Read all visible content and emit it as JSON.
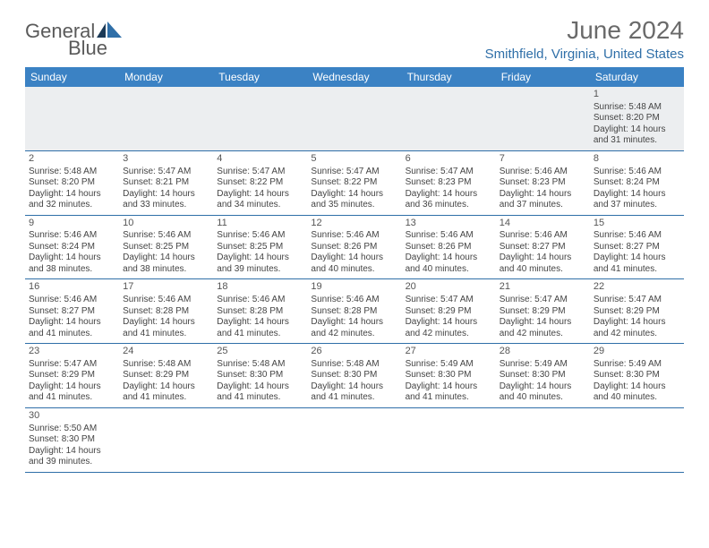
{
  "logo": {
    "word1": "General",
    "word2": "Blue"
  },
  "title": "June 2024",
  "location": "Smithfield, Virginia, United States",
  "colors": {
    "header_bg": "#3b82c4",
    "accent": "#2f6fa8",
    "text": "#444444",
    "title_text": "#6a6a6a",
    "firstrow_bg": "#eceef0"
  },
  "weekdays": [
    "Sunday",
    "Monday",
    "Tuesday",
    "Wednesday",
    "Thursday",
    "Friday",
    "Saturday"
  ],
  "weeks": [
    [
      null,
      null,
      null,
      null,
      null,
      null,
      {
        "n": "1",
        "sr": "5:48 AM",
        "ss": "8:20 PM",
        "dl1": "14 hours",
        "dl2": "and 31 minutes."
      }
    ],
    [
      {
        "n": "2",
        "sr": "5:48 AM",
        "ss": "8:20 PM",
        "dl1": "14 hours",
        "dl2": "and 32 minutes."
      },
      {
        "n": "3",
        "sr": "5:47 AM",
        "ss": "8:21 PM",
        "dl1": "14 hours",
        "dl2": "and 33 minutes."
      },
      {
        "n": "4",
        "sr": "5:47 AM",
        "ss": "8:22 PM",
        "dl1": "14 hours",
        "dl2": "and 34 minutes."
      },
      {
        "n": "5",
        "sr": "5:47 AM",
        "ss": "8:22 PM",
        "dl1": "14 hours",
        "dl2": "and 35 minutes."
      },
      {
        "n": "6",
        "sr": "5:47 AM",
        "ss": "8:23 PM",
        "dl1": "14 hours",
        "dl2": "and 36 minutes."
      },
      {
        "n": "7",
        "sr": "5:46 AM",
        "ss": "8:23 PM",
        "dl1": "14 hours",
        "dl2": "and 37 minutes."
      },
      {
        "n": "8",
        "sr": "5:46 AM",
        "ss": "8:24 PM",
        "dl1": "14 hours",
        "dl2": "and 37 minutes."
      }
    ],
    [
      {
        "n": "9",
        "sr": "5:46 AM",
        "ss": "8:24 PM",
        "dl1": "14 hours",
        "dl2": "and 38 minutes."
      },
      {
        "n": "10",
        "sr": "5:46 AM",
        "ss": "8:25 PM",
        "dl1": "14 hours",
        "dl2": "and 38 minutes."
      },
      {
        "n": "11",
        "sr": "5:46 AM",
        "ss": "8:25 PM",
        "dl1": "14 hours",
        "dl2": "and 39 minutes."
      },
      {
        "n": "12",
        "sr": "5:46 AM",
        "ss": "8:26 PM",
        "dl1": "14 hours",
        "dl2": "and 40 minutes."
      },
      {
        "n": "13",
        "sr": "5:46 AM",
        "ss": "8:26 PM",
        "dl1": "14 hours",
        "dl2": "and 40 minutes."
      },
      {
        "n": "14",
        "sr": "5:46 AM",
        "ss": "8:27 PM",
        "dl1": "14 hours",
        "dl2": "and 40 minutes."
      },
      {
        "n": "15",
        "sr": "5:46 AM",
        "ss": "8:27 PM",
        "dl1": "14 hours",
        "dl2": "and 41 minutes."
      }
    ],
    [
      {
        "n": "16",
        "sr": "5:46 AM",
        "ss": "8:27 PM",
        "dl1": "14 hours",
        "dl2": "and 41 minutes."
      },
      {
        "n": "17",
        "sr": "5:46 AM",
        "ss": "8:28 PM",
        "dl1": "14 hours",
        "dl2": "and 41 minutes."
      },
      {
        "n": "18",
        "sr": "5:46 AM",
        "ss": "8:28 PM",
        "dl1": "14 hours",
        "dl2": "and 41 minutes."
      },
      {
        "n": "19",
        "sr": "5:46 AM",
        "ss": "8:28 PM",
        "dl1": "14 hours",
        "dl2": "and 42 minutes."
      },
      {
        "n": "20",
        "sr": "5:47 AM",
        "ss": "8:29 PM",
        "dl1": "14 hours",
        "dl2": "and 42 minutes."
      },
      {
        "n": "21",
        "sr": "5:47 AM",
        "ss": "8:29 PM",
        "dl1": "14 hours",
        "dl2": "and 42 minutes."
      },
      {
        "n": "22",
        "sr": "5:47 AM",
        "ss": "8:29 PM",
        "dl1": "14 hours",
        "dl2": "and 42 minutes."
      }
    ],
    [
      {
        "n": "23",
        "sr": "5:47 AM",
        "ss": "8:29 PM",
        "dl1": "14 hours",
        "dl2": "and 41 minutes."
      },
      {
        "n": "24",
        "sr": "5:48 AM",
        "ss": "8:29 PM",
        "dl1": "14 hours",
        "dl2": "and 41 minutes."
      },
      {
        "n": "25",
        "sr": "5:48 AM",
        "ss": "8:30 PM",
        "dl1": "14 hours",
        "dl2": "and 41 minutes."
      },
      {
        "n": "26",
        "sr": "5:48 AM",
        "ss": "8:30 PM",
        "dl1": "14 hours",
        "dl2": "and 41 minutes."
      },
      {
        "n": "27",
        "sr": "5:49 AM",
        "ss": "8:30 PM",
        "dl1": "14 hours",
        "dl2": "and 41 minutes."
      },
      {
        "n": "28",
        "sr": "5:49 AM",
        "ss": "8:30 PM",
        "dl1": "14 hours",
        "dl2": "and 40 minutes."
      },
      {
        "n": "29",
        "sr": "5:49 AM",
        "ss": "8:30 PM",
        "dl1": "14 hours",
        "dl2": "and 40 minutes."
      }
    ],
    [
      {
        "n": "30",
        "sr": "5:50 AM",
        "ss": "8:30 PM",
        "dl1": "14 hours",
        "dl2": "and 39 minutes."
      },
      null,
      null,
      null,
      null,
      null,
      null
    ]
  ],
  "labels": {
    "sunrise": "Sunrise:",
    "sunset": "Sunset:",
    "daylight": "Daylight:"
  }
}
